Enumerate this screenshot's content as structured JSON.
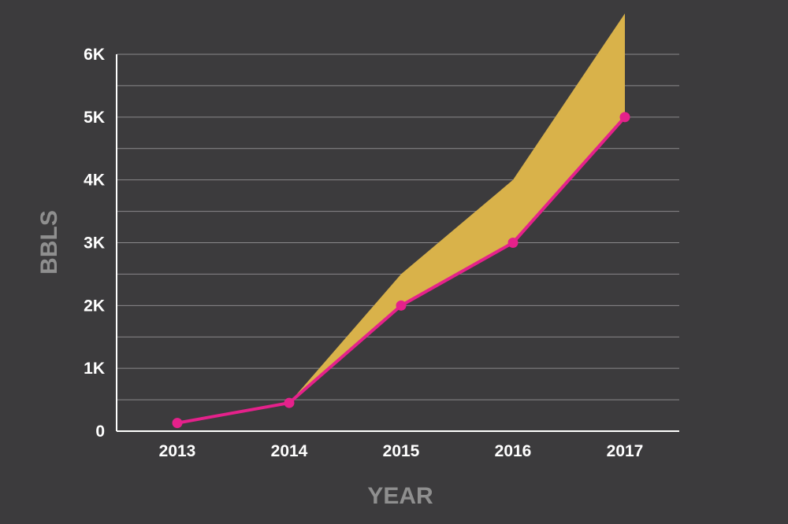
{
  "chart_data": {
    "type": "area",
    "xlabel": "YEAR",
    "ylabel": "BBLS",
    "categories": [
      "2013",
      "2014",
      "2015",
      "2016",
      "2017"
    ],
    "ylim": [
      0,
      6000
    ],
    "y_ticks": [
      {
        "value": 0,
        "label": "0"
      },
      {
        "value": 1000,
        "label": "1K"
      },
      {
        "value": 2000,
        "label": "2K"
      },
      {
        "value": 3000,
        "label": "3K"
      },
      {
        "value": 4000,
        "label": "4K"
      },
      {
        "value": 5000,
        "label": "5K"
      },
      {
        "value": 6000,
        "label": "6K"
      }
    ],
    "grid": true,
    "minor_gridlines": true,
    "series": [
      {
        "values": [
          130,
          450,
          2000,
          3000,
          5000
        ],
        "color": "#e5218b",
        "style": "line-with-markers"
      },
      {
        "values": [
          null,
          450,
          2500,
          4000,
          6650
        ],
        "color": "#d9b24a",
        "style": "band-above-line"
      }
    ],
    "colors": {
      "background": "#3c3b3d",
      "grid": "#8a898b",
      "axis": "#ffffff"
    }
  }
}
